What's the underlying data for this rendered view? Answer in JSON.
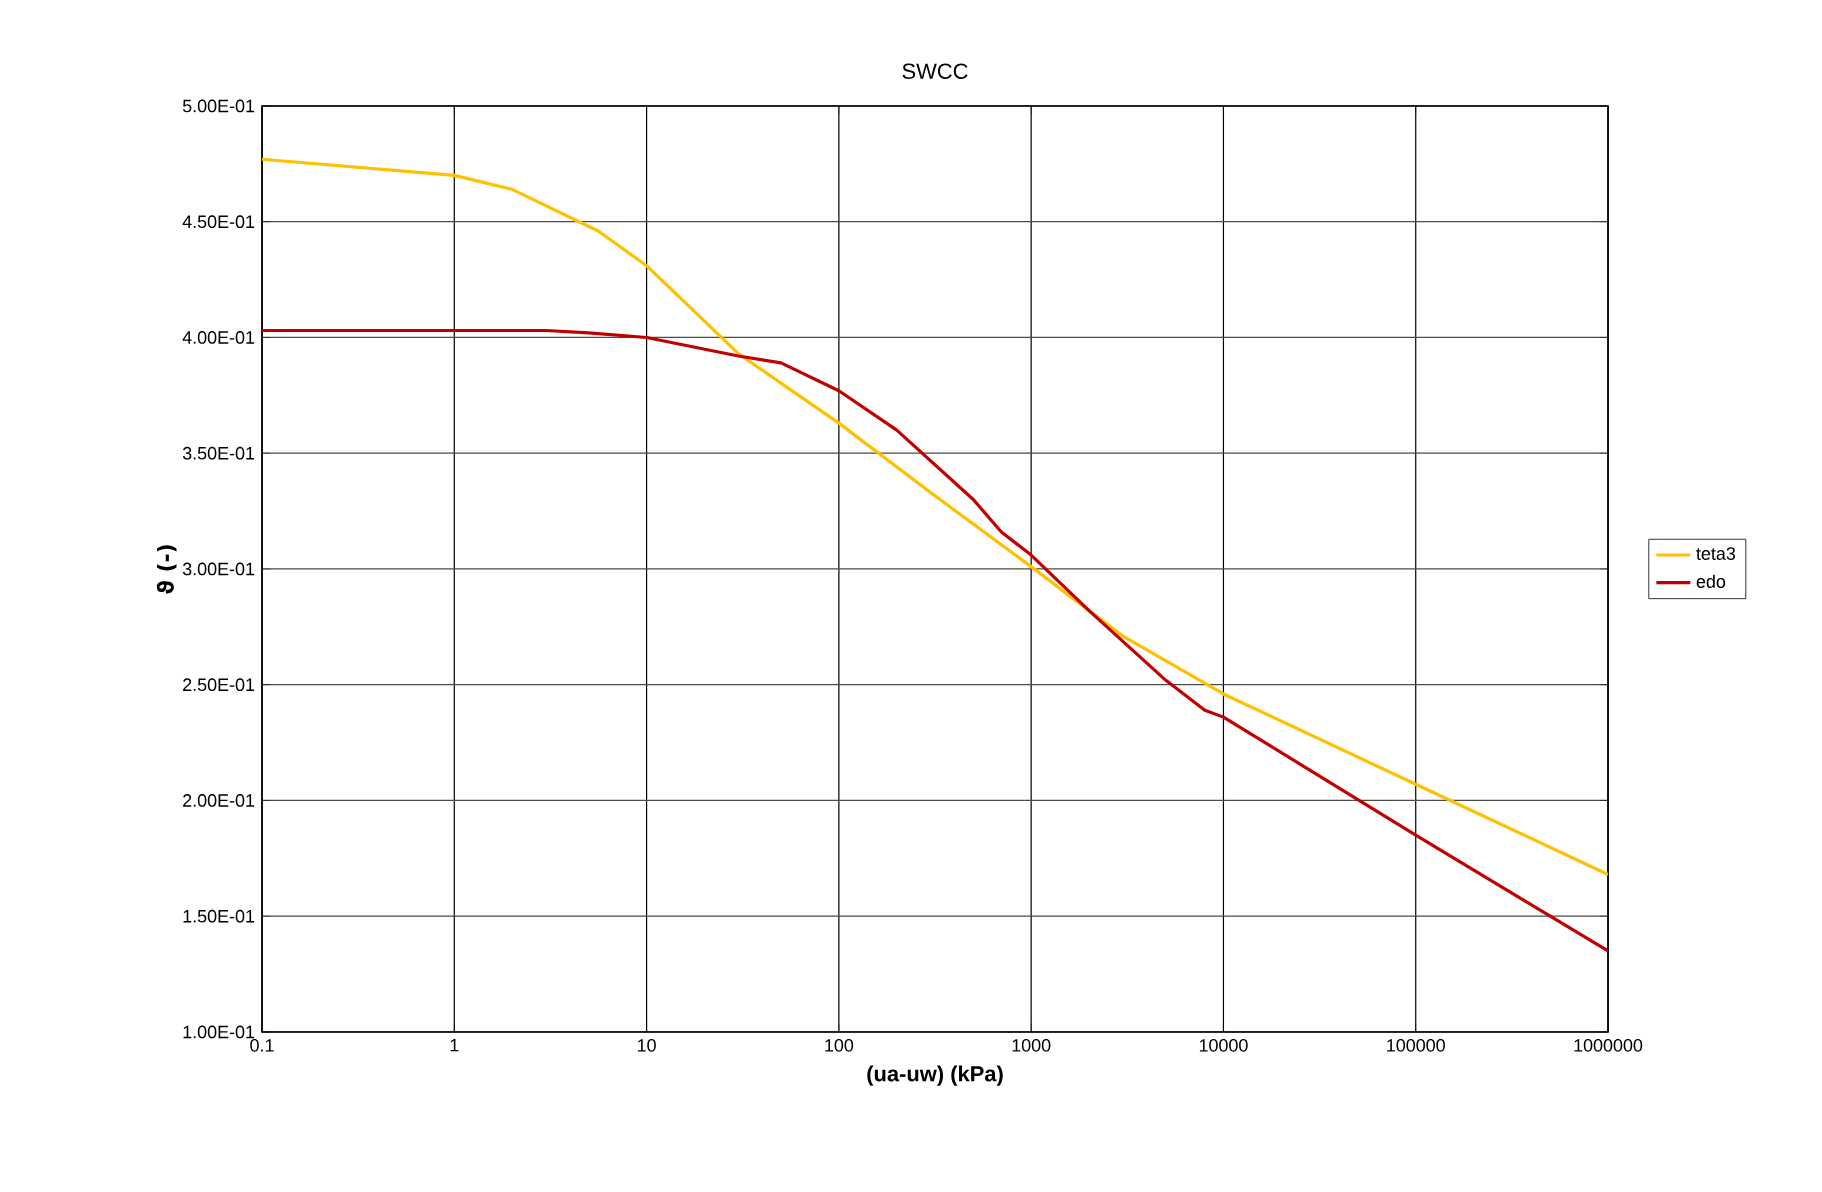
{
  "chart_data": {
    "type": "line",
    "title": "SWCC",
    "xlabel": "(ua-uw) (kPa)",
    "ylabel": "ϑ  (-)",
    "log": "x",
    "grid": true,
    "legend": "right",
    "line_style": "solid",
    "marker": "none",
    "xlim": [
      0.1,
      1000000
    ],
    "xticks": [
      0.1,
      1,
      10,
      100,
      1000,
      10000,
      100000,
      1000000
    ],
    "ylim": [
      0.1,
      0.5
    ],
    "yticks": [
      {
        "value": 0.1,
        "label": "1.00E-01"
      },
      {
        "value": 0.15,
        "label": "1.50E-01"
      },
      {
        "value": 0.2,
        "label": "2.00E-01"
      },
      {
        "value": 0.25,
        "label": "2.50E-01"
      },
      {
        "value": 0.3,
        "label": "3.00E-01"
      },
      {
        "value": 0.35,
        "label": "3.50E-01"
      },
      {
        "value": 0.4,
        "label": "4.00E-01"
      },
      {
        "value": 0.45,
        "label": "4.50E-01"
      },
      {
        "value": 0.5,
        "label": "5.00E-01"
      }
    ],
    "series": [
      {
        "name": "teta3",
        "color": "#ffc000",
        "x": [
          0.1,
          1,
          2,
          5.6,
          10,
          30,
          100,
          300,
          1000,
          2000,
          3000,
          10000,
          100000,
          1000000
        ],
        "values": [
          0.477,
          0.47,
          0.464,
          0.446,
          0.431,
          0.393,
          0.363,
          0.333,
          0.301,
          0.282,
          0.271,
          0.246,
          0.207,
          0.168
        ]
      },
      {
        "name": "edo",
        "color": "#c00000",
        "x": [
          0.1,
          3,
          5,
          10,
          30,
          50,
          100,
          200,
          500,
          700,
          1000,
          2000,
          5000,
          8000,
          10000,
          100000,
          1000000
        ],
        "values": [
          0.403,
          0.403,
          0.402,
          0.4,
          0.392,
          0.389,
          0.377,
          0.36,
          0.33,
          0.316,
          0.306,
          0.282,
          0.252,
          0.239,
          0.236,
          0.185,
          0.135
        ]
      }
    ]
  }
}
